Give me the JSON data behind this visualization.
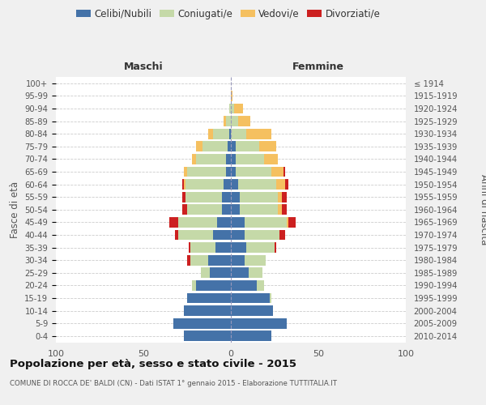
{
  "age_groups": [
    "0-4",
    "5-9",
    "10-14",
    "15-19",
    "20-24",
    "25-29",
    "30-34",
    "35-39",
    "40-44",
    "45-49",
    "50-54",
    "55-59",
    "60-64",
    "65-69",
    "70-74",
    "75-79",
    "80-84",
    "85-89",
    "90-94",
    "95-99",
    "100+"
  ],
  "birth_years": [
    "2010-2014",
    "2005-2009",
    "2000-2004",
    "1995-1999",
    "1990-1994",
    "1985-1989",
    "1980-1984",
    "1975-1979",
    "1970-1974",
    "1965-1969",
    "1960-1964",
    "1955-1959",
    "1950-1954",
    "1945-1949",
    "1940-1944",
    "1935-1939",
    "1930-1934",
    "1925-1929",
    "1920-1924",
    "1915-1919",
    "≤ 1914"
  ],
  "maschi": {
    "celibi": [
      27,
      33,
      27,
      25,
      20,
      12,
      13,
      9,
      10,
      8,
      5,
      5,
      4,
      3,
      3,
      2,
      1,
      0,
      0,
      0,
      0
    ],
    "coniugati": [
      0,
      0,
      0,
      0,
      2,
      5,
      10,
      14,
      20,
      22,
      20,
      21,
      22,
      22,
      17,
      14,
      9,
      3,
      1,
      0,
      0
    ],
    "vedovi": [
      0,
      0,
      0,
      0,
      0,
      0,
      0,
      0,
      0,
      0,
      0,
      0,
      1,
      2,
      2,
      4,
      3,
      1,
      0,
      0,
      0
    ],
    "divorziati": [
      0,
      0,
      0,
      0,
      0,
      0,
      2,
      1,
      2,
      5,
      3,
      2,
      1,
      0,
      0,
      0,
      0,
      0,
      0,
      0,
      0
    ]
  },
  "femmine": {
    "nubili": [
      23,
      32,
      24,
      22,
      15,
      10,
      8,
      9,
      8,
      8,
      5,
      5,
      4,
      3,
      3,
      3,
      0,
      0,
      0,
      0,
      0
    ],
    "coniugate": [
      0,
      0,
      0,
      1,
      4,
      8,
      12,
      16,
      20,
      24,
      22,
      22,
      22,
      20,
      16,
      13,
      9,
      4,
      2,
      0,
      0
    ],
    "vedove": [
      0,
      0,
      0,
      0,
      0,
      0,
      0,
      0,
      0,
      1,
      2,
      2,
      5,
      7,
      8,
      10,
      14,
      7,
      5,
      1,
      0
    ],
    "divorziate": [
      0,
      0,
      0,
      0,
      0,
      0,
      0,
      1,
      3,
      4,
      3,
      3,
      2,
      1,
      0,
      0,
      0,
      0,
      0,
      0,
      0
    ]
  },
  "colors": {
    "celibi": "#4472a8",
    "coniugati": "#c5d9a8",
    "vedovi": "#f5c060",
    "divorziati": "#cc2020"
  },
  "xlim": 100,
  "title": "Popolazione per età, sesso e stato civile - 2015",
  "subtitle": "COMUNE DI ROCCA DE' BALDI (CN) - Dati ISTAT 1° gennaio 2015 - Elaborazione TUTTITALIA.IT",
  "ylabel_left": "Fasce di età",
  "ylabel_right": "Anni di nascita",
  "xlabel_maschi": "Maschi",
  "xlabel_femmine": "Femmine",
  "bg_color": "#f0f0f0",
  "plot_bg_color": "#ffffff",
  "legend_labels": [
    "Celibi/Nubili",
    "Coniugati/e",
    "Vedovi/e",
    "Divorziati/e"
  ]
}
